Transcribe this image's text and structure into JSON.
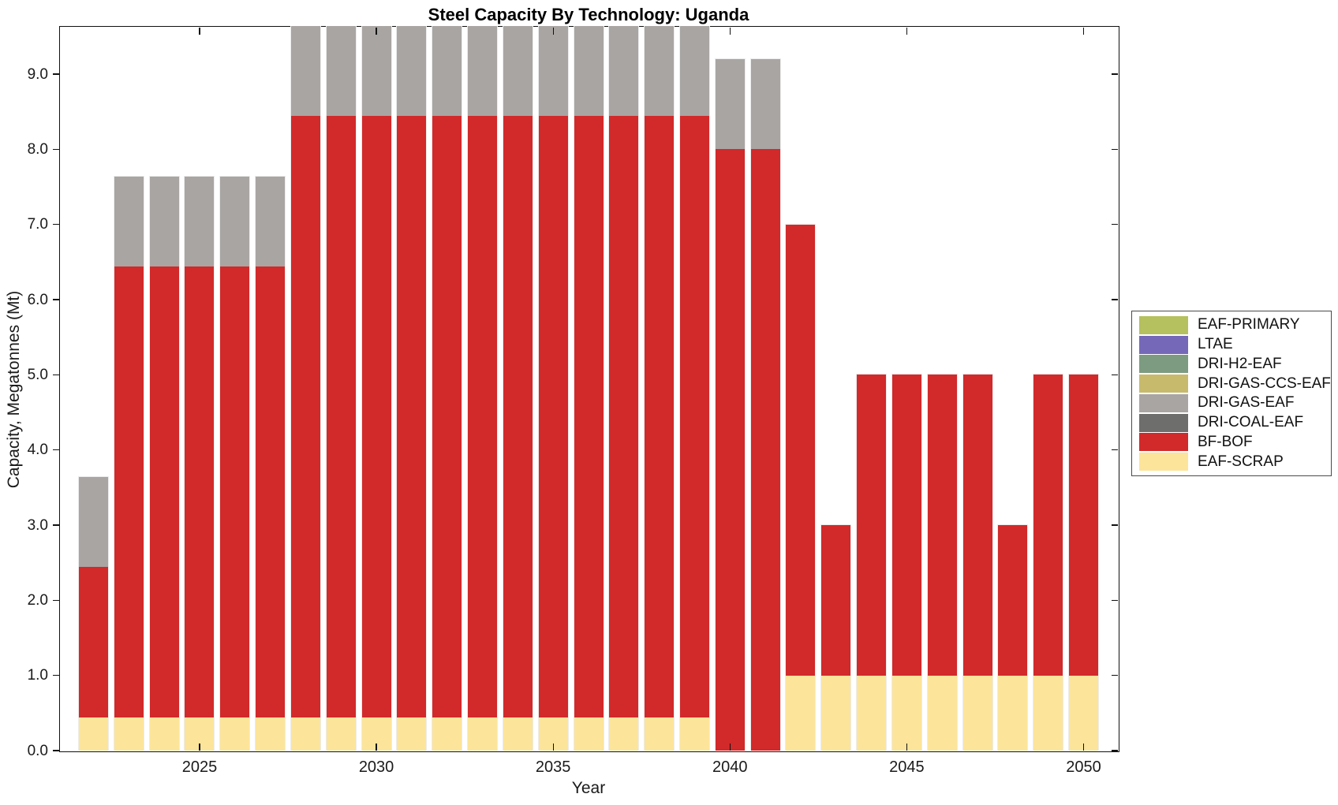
{
  "window": {
    "background": "#ffffff"
  },
  "chart_data": {
    "type": "bar",
    "stacked": true,
    "title": "Steel Capacity By Technology: Uganda",
    "xlabel": "Year",
    "ylabel": "Capacity, Megatonnes (Mt)",
    "x": [
      2022,
      2023,
      2024,
      2025,
      2026,
      2027,
      2028,
      2029,
      2030,
      2031,
      2032,
      2033,
      2034,
      2035,
      2036,
      2037,
      2038,
      2039,
      2040,
      2041,
      2042,
      2043,
      2044,
      2045,
      2046,
      2047,
      2048,
      2049,
      2050
    ],
    "x_tick_labels": [
      "2025",
      "2030",
      "2035",
      "2040",
      "2045",
      "2050"
    ],
    "x_tick_years": [
      2025,
      2030,
      2035,
      2040,
      2045,
      2050
    ],
    "y_tick_labels": [
      "0.0",
      "1.0",
      "2.0",
      "3.0",
      "4.0",
      "5.0",
      "6.0",
      "7.0",
      "8.0",
      "9.0"
    ],
    "y_tick_values": [
      0,
      1,
      2,
      3,
      4,
      5,
      6,
      7,
      8,
      9
    ],
    "ylim": [
      0,
      9.64
    ],
    "grid": false,
    "legend_position": "right-outside",
    "axis_color": "#111111",
    "series": [
      {
        "name": "EAF-PRIMARY",
        "color": "#b5c05f",
        "values": [
          0,
          0,
          0,
          0,
          0,
          0,
          0,
          0,
          0,
          0,
          0,
          0,
          0,
          0,
          0,
          0,
          0,
          0,
          0,
          0,
          0,
          0,
          0,
          0,
          0,
          0,
          0,
          0,
          0
        ]
      },
      {
        "name": "LTAE",
        "color": "#7568b8",
        "values": [
          0,
          0,
          0,
          0,
          0,
          0,
          0,
          0,
          0,
          0,
          0,
          0,
          0,
          0,
          0,
          0,
          0,
          0,
          0,
          0,
          0,
          0,
          0,
          0,
          0,
          0,
          0,
          0,
          0
        ]
      },
      {
        "name": "DRI-H2-EAF",
        "color": "#7c9b81",
        "values": [
          0,
          0,
          0,
          0,
          0,
          0,
          0,
          0,
          0,
          0,
          0,
          0,
          0,
          0,
          0,
          0,
          0,
          0,
          0,
          0,
          0,
          0,
          0,
          0,
          0,
          0,
          0,
          0,
          0
        ]
      },
      {
        "name": "DRI-GAS-CCS-EAF",
        "color": "#c7ba6d",
        "values": [
          0,
          0,
          0,
          0,
          0,
          0,
          0,
          0,
          0,
          0,
          0,
          0,
          0,
          0,
          0,
          0,
          0,
          0,
          0,
          0,
          0,
          0,
          0,
          0,
          0,
          0,
          0,
          0,
          0
        ]
      },
      {
        "name": "DRI-GAS-EAF",
        "color": "#a8a5a3",
        "values": [
          1.2,
          1.2,
          1.2,
          1.2,
          1.2,
          1.2,
          1.2,
          1.2,
          1.2,
          1.2,
          1.2,
          1.2,
          1.2,
          1.2,
          1.2,
          1.2,
          1.2,
          1.2,
          1.2,
          1.2,
          0,
          0,
          0,
          0,
          0,
          0,
          0,
          0,
          0
        ]
      },
      {
        "name": "DRI-COAL-EAF",
        "color": "#6e6e6d",
        "values": [
          0,
          0,
          0,
          0,
          0,
          0,
          0,
          0,
          0,
          0,
          0,
          0,
          0,
          0,
          0,
          0,
          0,
          0,
          0,
          0,
          0,
          0,
          0,
          0,
          0,
          0,
          0,
          0,
          0
        ]
      },
      {
        "name": "BF-BOF",
        "color": "#d2292a",
        "values": [
          2,
          6,
          6,
          6,
          6,
          6,
          8,
          8,
          8,
          8,
          8,
          8,
          8,
          8,
          8,
          8,
          8,
          8,
          8,
          8,
          6,
          2,
          4,
          4,
          4,
          4,
          2,
          4,
          4
        ]
      },
      {
        "name": "EAF-SCRAP",
        "color": "#fce49a",
        "values": [
          0.44,
          0.44,
          0.44,
          0.44,
          0.44,
          0.44,
          0.44,
          0.44,
          0.44,
          0.44,
          0.44,
          0.44,
          0.44,
          0.44,
          0.44,
          0.44,
          0.44,
          0.44,
          0,
          0,
          1,
          1,
          1,
          1,
          1,
          1,
          1,
          1,
          1
        ]
      }
    ]
  }
}
